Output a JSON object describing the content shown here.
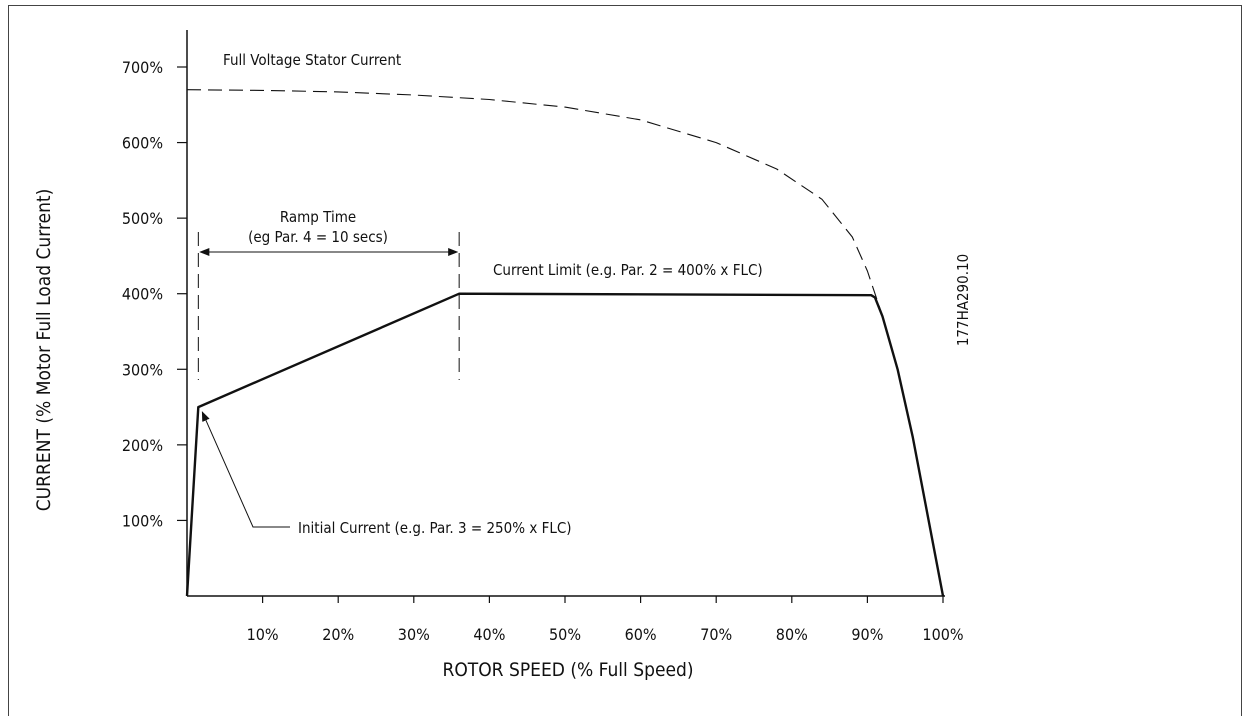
{
  "chart_data": {
    "type": "line",
    "xlabel": "ROTOR SPEED (% Full Speed)",
    "ylabel": "CURRENT (% Motor Full Load Current)",
    "xlim": [
      0,
      100
    ],
    "ylim": [
      0,
      700
    ],
    "x_ticks": [
      10,
      20,
      30,
      40,
      50,
      60,
      70,
      80,
      90,
      100
    ],
    "x_tick_labels": [
      "10%",
      "20%",
      "30%",
      "40%",
      "50%",
      "60%",
      "70%",
      "80%",
      "90%",
      "100%"
    ],
    "y_ticks": [
      100,
      200,
      300,
      400,
      500,
      600,
      700
    ],
    "y_tick_labels": [
      "100%",
      "200%",
      "300%",
      "400%",
      "500%",
      "600%",
      "700%"
    ],
    "series": [
      {
        "name": "Full Voltage Stator Current",
        "style": "dashed",
        "x": [
          0,
          10,
          20,
          30,
          40,
          50,
          60,
          70,
          78,
          84,
          88,
          90,
          91,
          92,
          94,
          96,
          98,
          100
        ],
        "y": [
          670,
          669,
          667,
          663,
          657,
          647,
          630,
          600,
          565,
          525,
          475,
          430,
          400,
          370,
          300,
          210,
          105,
          0
        ]
      },
      {
        "name": "Current Limit (e.g. Par. 2 = 400% x FLC)",
        "style": "solid",
        "x": [
          0,
          1.5,
          36,
          90.5,
          91,
          92,
          94,
          96,
          98,
          100
        ],
        "y": [
          0,
          250,
          400,
          398,
          395,
          370,
          300,
          210,
          105,
          0
        ]
      }
    ],
    "annotations": {
      "full_voltage": "Full Voltage Stator Current",
      "ramp_time_line1": "Ramp Time",
      "ramp_time_line2": "(eg Par. 4 = 10 secs)",
      "current_limit": "Current Limit (e.g. Par. 2 = 400% x FLC)",
      "initial_current": "Initial Current (e.g. Par. 3 = 250% x FLC)",
      "figure_code": "177HA290.10"
    },
    "ramp_start_x": 1.5,
    "ramp_end_x": 36,
    "grid": false,
    "legend": "none"
  }
}
